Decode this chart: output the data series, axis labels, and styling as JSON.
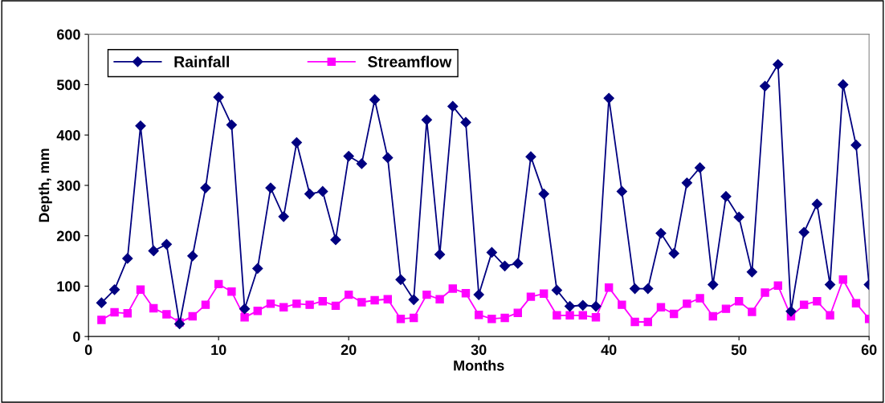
{
  "chart_data": {
    "type": "line",
    "xlabel": "Months",
    "ylabel": "Depth, mm",
    "x": [
      1,
      2,
      3,
      4,
      5,
      6,
      7,
      8,
      9,
      10,
      11,
      12,
      13,
      14,
      15,
      16,
      17,
      18,
      19,
      20,
      21,
      22,
      23,
      24,
      25,
      26,
      27,
      28,
      29,
      30,
      31,
      32,
      33,
      34,
      35,
      36,
      37,
      38,
      39,
      40,
      41,
      42,
      43,
      44,
      45,
      46,
      47,
      48,
      49,
      50,
      51,
      52,
      53,
      54,
      55,
      56,
      57,
      58,
      59,
      60
    ],
    "series": [
      {
        "name": "Rainfall",
        "color": "#000080",
        "marker": "diamond",
        "values": [
          67,
          93,
          155,
          418,
          170,
          183,
          25,
          160,
          295,
          475,
          420,
          55,
          135,
          295,
          238,
          385,
          283,
          288,
          192,
          358,
          343,
          470,
          355,
          113,
          73,
          430,
          163,
          457,
          425,
          83,
          167,
          140,
          145,
          357,
          283,
          92,
          60,
          62,
          60,
          473,
          288,
          95,
          95,
          205,
          165,
          305,
          335,
          103,
          278,
          237,
          128,
          497,
          540,
          50,
          207,
          263,
          103,
          500,
          380,
          103
        ]
      },
      {
        "name": "Streamflow",
        "color": "#ff00ff",
        "marker": "square",
        "values": [
          33,
          48,
          46,
          93,
          56,
          44,
          28,
          40,
          63,
          104,
          89,
          38,
          51,
          65,
          58,
          65,
          63,
          70,
          61,
          83,
          68,
          72,
          74,
          35,
          37,
          83,
          74,
          95,
          86,
          43,
          35,
          37,
          47,
          79,
          85,
          42,
          42,
          42,
          38,
          97,
          63,
          29,
          29,
          58,
          45,
          65,
          76,
          40,
          55,
          70,
          49,
          87,
          101,
          40,
          63,
          70,
          42,
          113,
          66,
          35
        ]
      }
    ],
    "xlim": [
      0,
      60
    ],
    "xticks": [
      0,
      10,
      20,
      30,
      40,
      50,
      60
    ],
    "ylim": [
      0,
      600
    ],
    "yticks": [
      0,
      100,
      200,
      300,
      400,
      500,
      600
    ],
    "grid": false,
    "legend": "top left",
    "line_style": "solid"
  }
}
